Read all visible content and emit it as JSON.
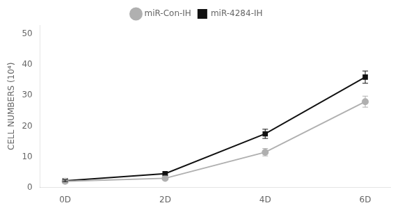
{
  "chart_data": {
    "type": "line",
    "x": [
      0,
      2,
      4,
      6
    ],
    "xlim": [
      -0.5,
      6.5
    ],
    "xticks": [
      {
        "value": 0,
        "label": "0D"
      },
      {
        "value": 2,
        "label": "2D"
      },
      {
        "value": 4,
        "label": "4D"
      },
      {
        "value": 6,
        "label": "6D"
      }
    ],
    "y_label": "CELL NUMBERS (10⁴)",
    "ylim": [
      0,
      53
    ],
    "yticks": [
      0,
      10,
      20,
      30,
      40,
      50
    ],
    "grid": false,
    "legend": "top",
    "series": [
      {
        "name": "miR-Con-IH",
        "color": "#b0b0b0",
        "marker": "circle",
        "values": [
          2.0,
          3.0,
          11.5,
          28.0
        ],
        "errors": [
          0.3,
          0.4,
          1.2,
          1.8
        ]
      },
      {
        "name": "miR-4284-IH",
        "color": "#111111",
        "marker": "square",
        "values": [
          2.2,
          4.5,
          17.5,
          36.0
        ],
        "errors": [
          0.3,
          0.5,
          1.5,
          2.0
        ]
      }
    ]
  }
}
